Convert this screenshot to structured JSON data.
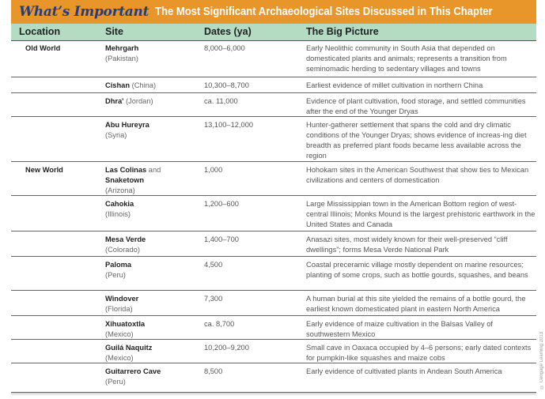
{
  "banner": {
    "tag": "What’s Important",
    "title": "The Most Significant Archaeological Sites Discussed in This Chapter",
    "color": "#e8952a"
  },
  "columns": [
    "Location",
    "Site",
    "Dates (ya)",
    "The Big Picture"
  ],
  "rows": [
    {
      "location": "Old World",
      "site": "Mehrgarh",
      "site_extra": "",
      "region": "(Pakistan)",
      "dates": "8,000–6,000",
      "picture": "Early Neolithic community in South Asia that depended on domesticated plants and animals; represents a transition from seminomadic herding to sedentary villages and towns"
    },
    {
      "location": "",
      "site": "Cishan",
      "site_extra": "",
      "region": "(China)",
      "dates": "10,300–8,700",
      "picture": "Earliest evidence of millet cultivation in northern China"
    },
    {
      "location": "",
      "site": "Dhra'",
      "site_extra": "",
      "region": "(Jordan)",
      "dates": "ca. 11,000",
      "picture": "Evidence of plant cultivation, food storage, and settled communities after the end of the Younger Dryas"
    },
    {
      "location": "",
      "site": "Abu Hureyra",
      "site_extra": "",
      "region": "(Syria)",
      "dates": "13,100–12,000",
      "picture": "Hunter-gatherer settlement that spans the cold and dry climatic conditions of the Younger Dryas; shows evidence of increas-ing diet breadth as preferred plant foods became less available across the region"
    },
    {
      "location": "New World",
      "site": "Las Colinas",
      "site_extra": "and",
      "site2": "Snaketown",
      "region": "(Arizona)",
      "dates": "1,000",
      "picture": "Hohokam sites in the American Southwest that show ties to Mexican civilizations and centers of domestication"
    },
    {
      "location": "",
      "site": "Cahokia",
      "site_extra": "",
      "region": "(Illinois)",
      "dates": "1,200–600",
      "picture": "Large Mississippian town in the American Bottom region of west-central Illinois; Monks Mound is the largest prehistoric earthwork in the United States and Canada"
    },
    {
      "location": "",
      "site": "Mesa Verde",
      "site_extra": "",
      "region": "(Colorado)",
      "dates": "1,400–700",
      "picture": "Anasazi sites, most widely known for their well-preserved “cliff dwellings”; forms Mesa Verde National Park"
    },
    {
      "location": "",
      "site": "Paloma",
      "site_extra": "",
      "region": "(Peru)",
      "dates": "4,500",
      "picture": "Coastal preceramic village mostly dependent on marine resources; planting of some crops, such as bottle gourds, squashes, and beans"
    },
    {
      "location": "",
      "site": "Windover",
      "site_extra": "",
      "region": "(Florida)",
      "dates": "7,300",
      "picture": "A human burial at this site yielded the remains of a bottle gourd, the earliest known domesticated plant in eastern North America"
    },
    {
      "location": "",
      "site": "Xihuatoxtla",
      "site_extra": "",
      "region": "(Mexico)",
      "dates": "ca. 8,700",
      "picture": "Early evidence of maize cultivation in the Balsas Valley of southwestern Mexico"
    },
    {
      "location": "",
      "site": "Guilá Naquitz",
      "site_extra": "",
      "region": "(Mexico)",
      "dates": "10,200–9,200",
      "picture": "Small cave in Oaxaca occupied by 4–6 persons; early dated contexts for pumpkin-like squashes and maize cobs"
    },
    {
      "location": "",
      "site": "Guitarrero Cave",
      "site_extra": "",
      "region": "(Peru)",
      "dates": "8,500",
      "picture": "Early evidence of cultivated plants in Andean South America"
    }
  ],
  "credit": "© Cengage Learning 2013"
}
